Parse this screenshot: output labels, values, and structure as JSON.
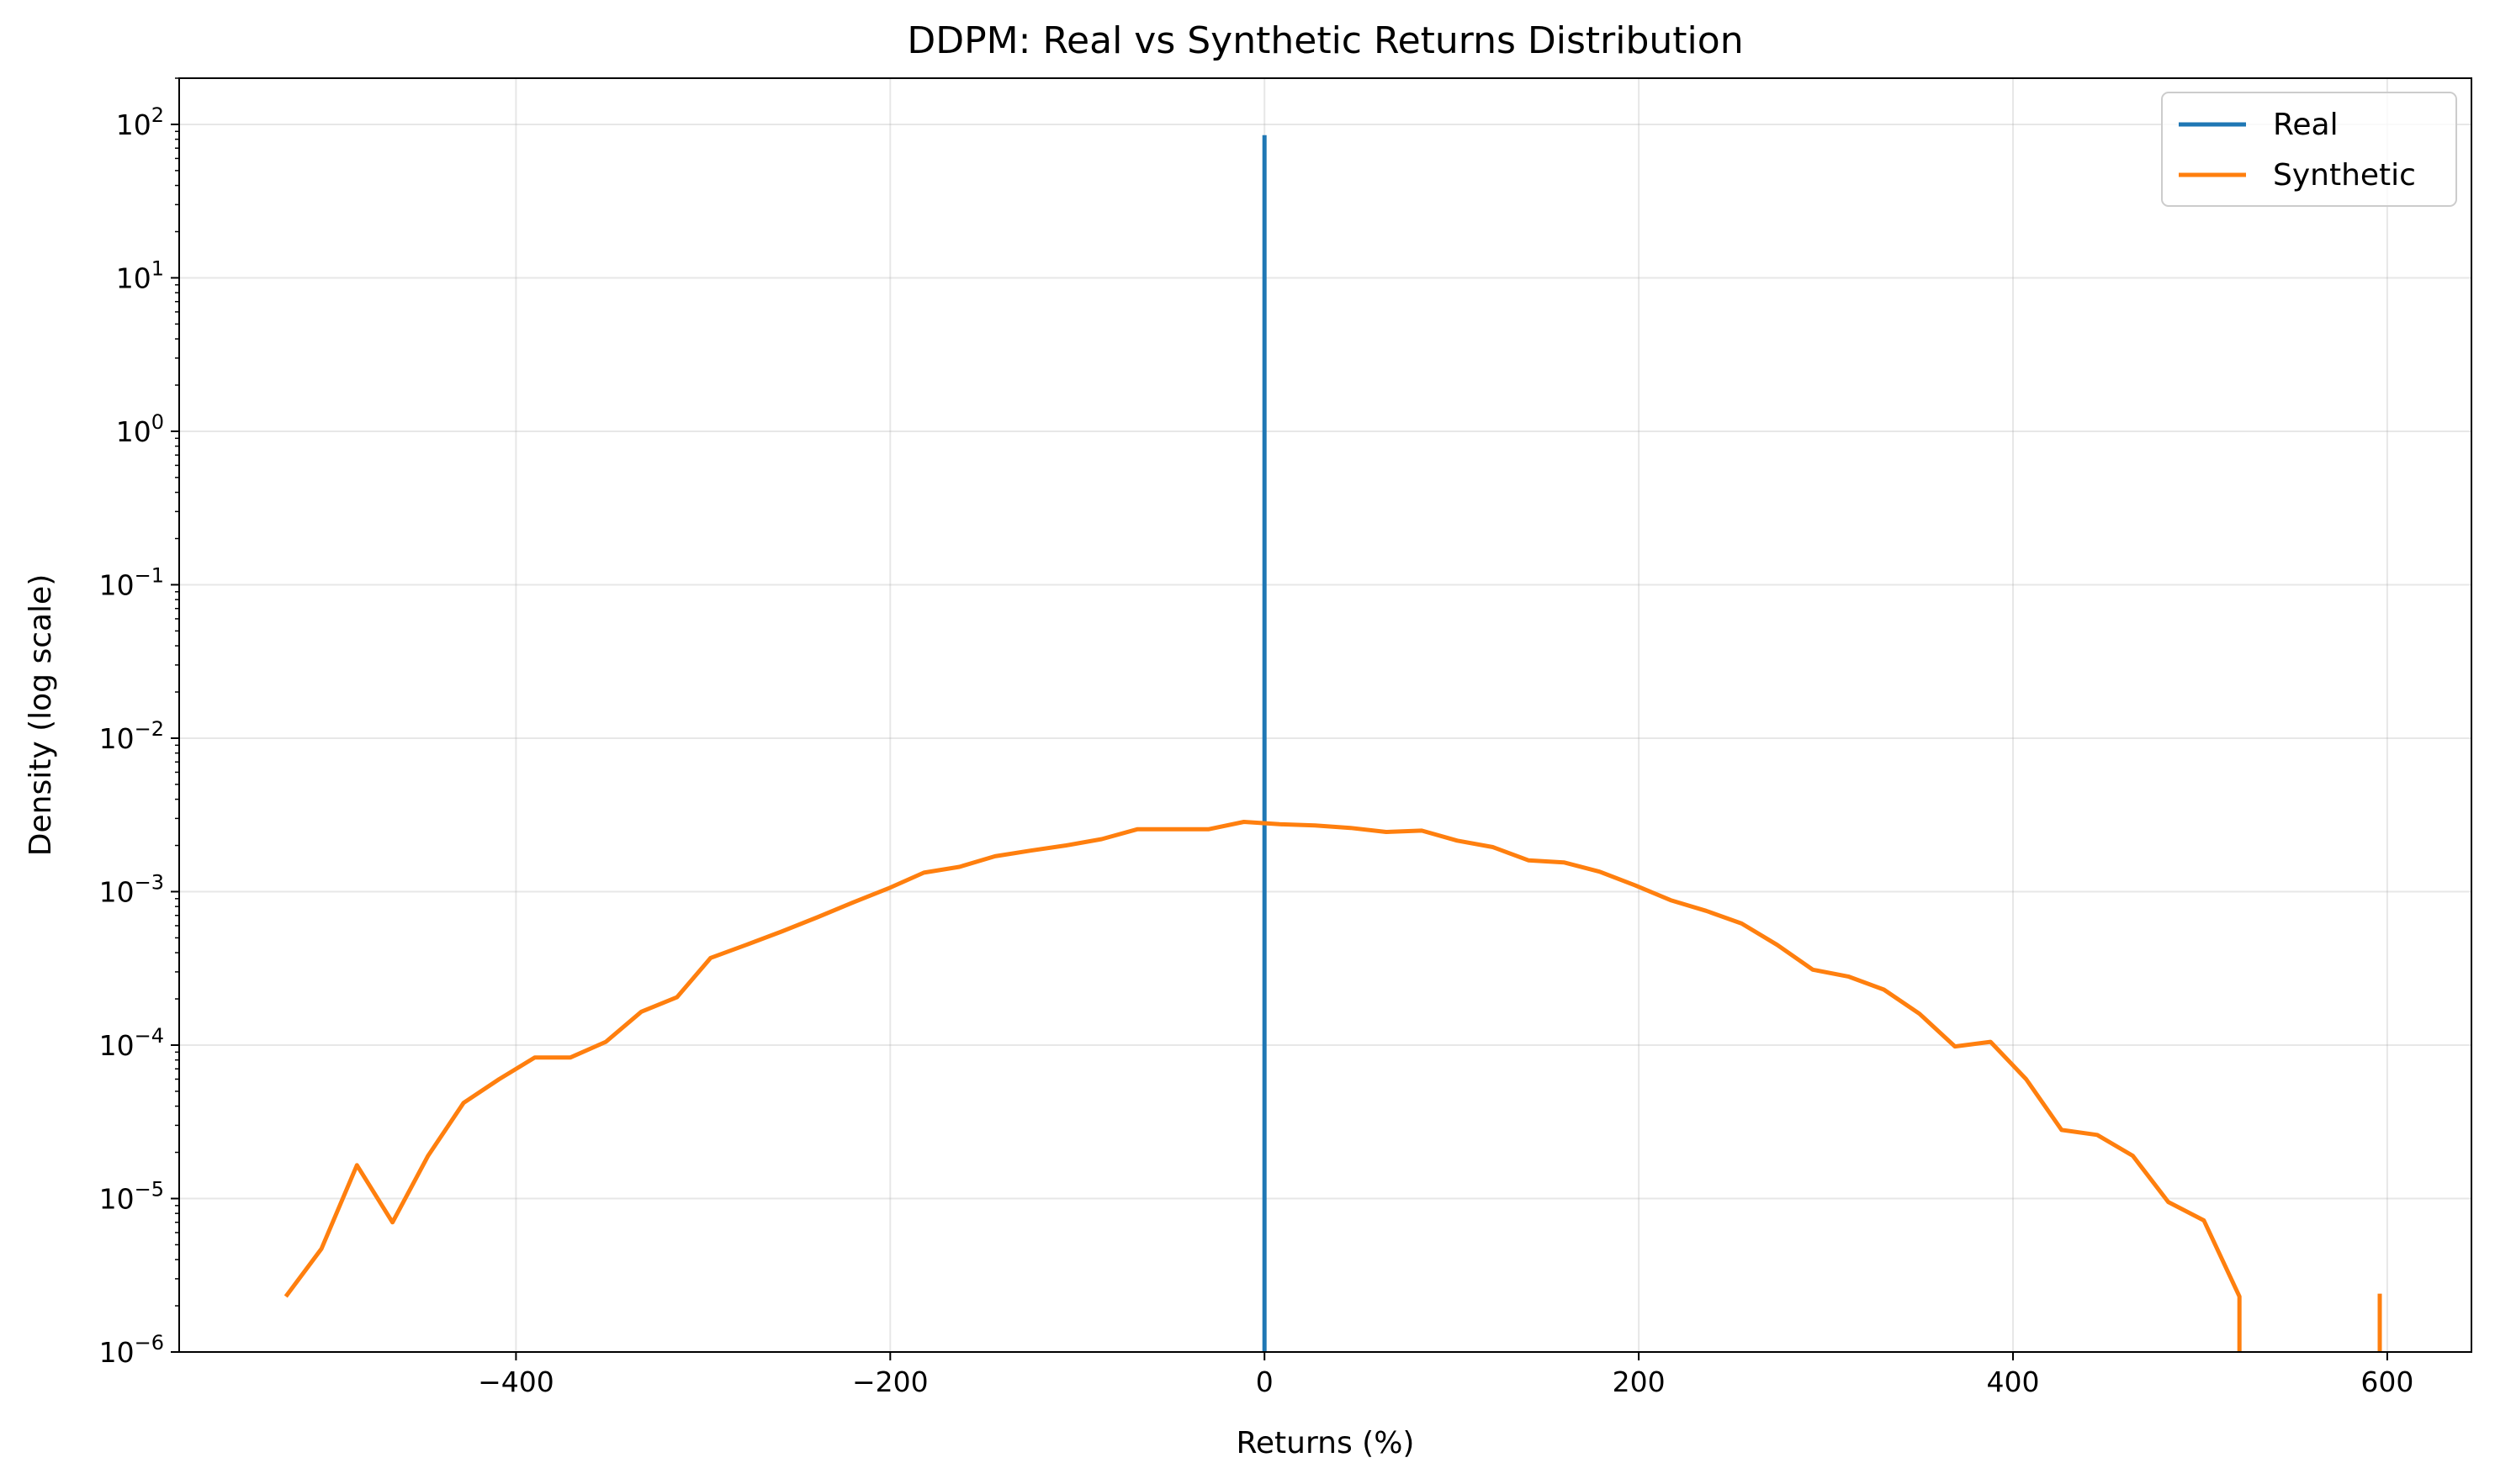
{
  "chart_data": {
    "type": "line",
    "title": "DDPM: Real vs Synthetic Returns Distribution",
    "xlabel": "Returns (%)",
    "ylabel": "Density (log scale)",
    "xlim": [
      -580,
      645
    ],
    "ylim": [
      1e-06,
      200
    ],
    "yscale": "log",
    "grid": true,
    "legend_position": "top-right",
    "xticks": [
      {
        "value": -400,
        "label": "−400"
      },
      {
        "value": -200,
        "label": "−200"
      },
      {
        "value": 0,
        "label": "0"
      },
      {
        "value": 200,
        "label": "200"
      },
      {
        "value": 400,
        "label": "400"
      },
      {
        "value": 600,
        "label": "600"
      }
    ],
    "yticks": [
      {
        "value": 100,
        "base": "10",
        "exp": "2"
      },
      {
        "value": 10,
        "base": "10",
        "exp": "1"
      },
      {
        "value": 1,
        "base": "10",
        "exp": "0"
      },
      {
        "value": 0.1,
        "base": "10",
        "exp": "−1"
      },
      {
        "value": 0.01,
        "base": "10",
        "exp": "−2"
      },
      {
        "value": 0.001,
        "base": "10",
        "exp": "−3"
      },
      {
        "value": 0.0001,
        "base": "10",
        "exp": "−4"
      },
      {
        "value": 1e-05,
        "base": "10",
        "exp": "−5"
      },
      {
        "value": 1e-06,
        "base": "10",
        "exp": "−6"
      }
    ],
    "series": [
      {
        "name": "Real",
        "color": "#1f77b4",
        "x": [
          0,
          0
        ],
        "y": [
          1e-06,
          85
        ]
      },
      {
        "name": "Synthetic",
        "color": "#ff7f0e",
        "segments": [
          {
            "x": [
              -523,
              -504,
              -485,
              -466,
              -447,
              -428,
              -409,
              -390,
              -371,
              -352,
              -333,
              -314,
              -296,
              -277,
              -258,
              -239,
              -220,
              -201,
              -182,
              -163,
              -144,
              -125,
              -106,
              -87,
              -68,
              -49,
              -30,
              -11,
              8,
              27,
              46,
              65,
              84,
              103,
              122,
              141,
              160,
              179,
              198,
              217,
              236,
              255,
              274,
              293,
              312,
              331,
              350,
              369,
              388,
              407,
              426,
              445,
              464,
              483,
              502,
              521,
              521
            ],
            "y": [
              2.3e-06,
              4.7e-06,
              1.65e-05,
              7e-06,
              1.9e-05,
              4.2e-05,
              6e-05,
              8.3e-05,
              8.3e-05,
              0.000105,
              0.000165,
              0.000205,
              0.00037,
              0.00045,
              0.00055,
              0.00068,
              0.00085,
              0.00105,
              0.00133,
              0.00145,
              0.0017,
              0.00185,
              0.002,
              0.0022,
              0.00255,
              0.00255,
              0.00255,
              0.00285,
              0.00275,
              0.0027,
              0.0026,
              0.00245,
              0.0025,
              0.00215,
              0.00195,
              0.0016,
              0.00155,
              0.00135,
              0.0011,
              0.00088,
              0.00075,
              0.00062,
              0.00045,
              0.00031,
              0.00028,
              0.00023,
              0.00016,
              9.8e-05,
              0.000105,
              6e-05,
              2.8e-05,
              2.6e-05,
              1.9e-05,
              9.5e-06,
              7.2e-06,
              2.3e-06,
              1e-06
            ]
          },
          {
            "x": [
              596,
              596
            ],
            "y": [
              1e-06,
              2.4e-06
            ]
          }
        ]
      }
    ]
  }
}
